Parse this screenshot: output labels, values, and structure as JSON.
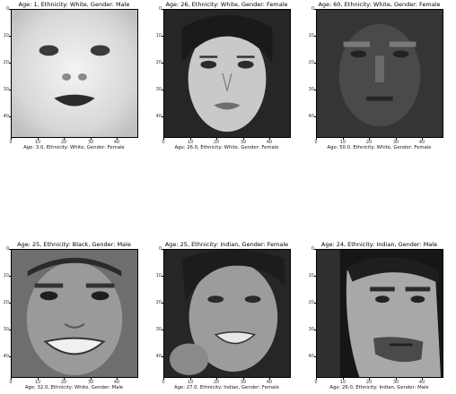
{
  "figure": {
    "x_ticks": [
      "0",
      "10",
      "20",
      "30",
      "40"
    ],
    "y_ticks": [
      "0",
      "10",
      "20",
      "30",
      "40"
    ],
    "panels": [
      {
        "title": "Age: 1, Ethnicity: White, Gender: Male",
        "xlabel": "Age: 3.0, Ethnicity: White, Gender: Female",
        "image": "grayscale-face-baby"
      },
      {
        "title": "Age: 26, Ethnicity: White, Gender: Female",
        "xlabel": "Age: 26.0, Ethnicity: White, Gender: Female",
        "image": "grayscale-face-young-woman"
      },
      {
        "title": "Age: 60, Ethnicity: White, Gender: Female",
        "xlabel": "Age: 50.0, Ethnicity: White, Gender: Female",
        "image": "grayscale-face-older-woman-dark"
      },
      {
        "title": "Age: 25, Ethnicity: Black, Gender: Male",
        "xlabel": "Age: 32.0, Ethnicity: White, Gender: Male",
        "image": "grayscale-face-smiling-man"
      },
      {
        "title": "Age: 25, Ethnicity: Indian, Gender: Female",
        "xlabel": "Age: 27.0, Ethnicity: Indian, Gender: Female",
        "image": "grayscale-face-smiling-woman"
      },
      {
        "title": "Age: 24, Ethnicity: Indian, Gender: Male",
        "xlabel": "Age: 26.0, Ethnicity: Indian, Gender: Male",
        "image": "grayscale-face-bearded-man"
      }
    ]
  }
}
